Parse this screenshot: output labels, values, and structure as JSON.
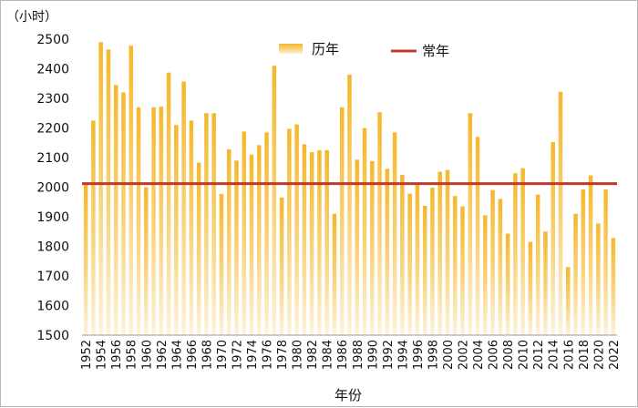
{
  "chart_data": {
    "type": "bar",
    "unit_label": "（小时）",
    "xlabel": "年份",
    "ylim": [
      1500,
      2500
    ],
    "yticks": [
      1500,
      1600,
      1700,
      1800,
      1900,
      2000,
      2100,
      2200,
      2300,
      2400,
      2500
    ],
    "legend_position": "top",
    "grid": false,
    "categories": [
      "1952",
      "1953",
      "1954",
      "1955",
      "1956",
      "1957",
      "1958",
      "1959",
      "1960",
      "1961",
      "1962",
      "1963",
      "1964",
      "1965",
      "1966",
      "1967",
      "1968",
      "1969",
      "1970",
      "1971",
      "1972",
      "1973",
      "1974",
      "1975",
      "1976",
      "1977",
      "1978",
      "1979",
      "1980",
      "1981",
      "1982",
      "1983",
      "1984",
      "1985",
      "1986",
      "1987",
      "1988",
      "1989",
      "1990",
      "1991",
      "1992",
      "1993",
      "1994",
      "1995",
      "1996",
      "1997",
      "1998",
      "1999",
      "2000",
      "2001",
      "2002",
      "2003",
      "2004",
      "2005",
      "2006",
      "2007",
      "2008",
      "2009",
      "2010",
      "2011",
      "2012",
      "2013",
      "2014",
      "2015",
      "2016",
      "2017",
      "2018",
      "2019",
      "2020",
      "2021",
      "2022"
    ],
    "xtick_labels": [
      "1952",
      "1954",
      "1956",
      "1958",
      "1960",
      "1962",
      "1964",
      "1966",
      "1968",
      "1970",
      "1972",
      "1974",
      "1976",
      "1978",
      "1980",
      "1982",
      "1984",
      "1986",
      "1988",
      "1990",
      "1992",
      "1994",
      "1996",
      "1998",
      "2000",
      "2002",
      "2004",
      "2006",
      "2008",
      "2010",
      "2012",
      "2014",
      "2016",
      "2018",
      "2020",
      "2022"
    ],
    "series": [
      {
        "name": "历年",
        "type": "bar",
        "color": "#f5b82e",
        "values": [
          2010,
          2225,
          2490,
          2465,
          2345,
          2320,
          2478,
          2270,
          2000,
          2270,
          2272,
          2387,
          2210,
          2357,
          2225,
          2083,
          2250,
          2250,
          1977,
          2128,
          2090,
          2188,
          2110,
          2142,
          2185,
          2410,
          1965,
          2197,
          2212,
          2145,
          2118,
          2125,
          2125,
          1910,
          2270,
          2380,
          2093,
          2200,
          2088,
          2253,
          2062,
          2185,
          2042,
          1978,
          2012,
          1937,
          1998,
          2052,
          2058,
          1970,
          1935,
          2250,
          2170,
          1905,
          1990,
          1960,
          1843,
          2047,
          2064,
          1815,
          1975,
          1850,
          2152,
          2322,
          1730,
          1910,
          1992,
          2040,
          1877,
          1992,
          1828
        ]
      },
      {
        "name": "常年",
        "type": "line",
        "color": "#c0392b",
        "value": 2012
      }
    ]
  }
}
